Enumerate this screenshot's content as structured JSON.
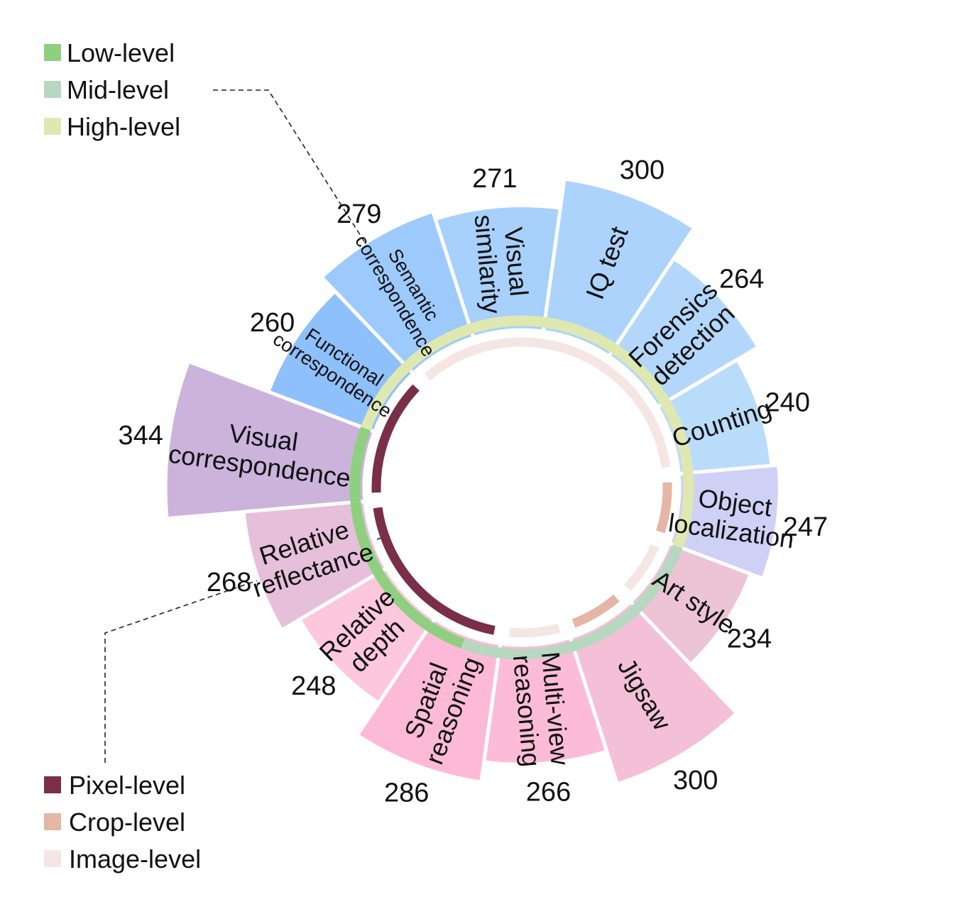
{
  "chart_data": {
    "type": "radial bar",
    "categories": [
      {
        "name": "Visual correspondence",
        "lines": [
          "Visual",
          "correspondence"
        ],
        "value": 344,
        "color": "#cbb3dc",
        "small": false
      },
      {
        "name": "Functional correspondence",
        "lines": [
          "Functional",
          "correspondence"
        ],
        "value": 260,
        "color": "#8ec0fb",
        "small": true
      },
      {
        "name": "Semantic correspondence",
        "lines": [
          "Semantic",
          "correspondence"
        ],
        "value": 279,
        "color": "#9ccafc",
        "small": true
      },
      {
        "name": "Visual similarity",
        "lines": [
          "Visual",
          "similarity"
        ],
        "value": 271,
        "color": "#a7d0fb",
        "small": false
      },
      {
        "name": "IQ test",
        "lines": [
          "IQ test"
        ],
        "value": 300,
        "color": "#acd3fb",
        "small": false
      },
      {
        "name": "Forensics detection",
        "lines": [
          "Forensics",
          "detection"
        ],
        "value": 264,
        "color": "#b3d7fb",
        "small": false
      },
      {
        "name": "Counting",
        "lines": [
          "Counting"
        ],
        "value": 240,
        "color": "#badcfb",
        "small": false
      },
      {
        "name": "Object localization",
        "lines": [
          "Object",
          "localization"
        ],
        "value": 247,
        "color": "#cfd0f6",
        "small": false
      },
      {
        "name": "Art style",
        "lines": [
          "Art style"
        ],
        "value": 234,
        "color": "#ecc4d6",
        "small": false
      },
      {
        "name": "Jigsaw",
        "lines": [
          "Jigsaw"
        ],
        "value": 300,
        "color": "#f3c0d7",
        "small": false
      },
      {
        "name": "Multi-view reasoning",
        "lines": [
          "Multi-view",
          "reasoning"
        ],
        "value": 266,
        "color": "#fcbcd7",
        "small": false
      },
      {
        "name": "Spatial reasoning",
        "lines": [
          "Spatial",
          "reasoning"
        ],
        "value": 286,
        "color": "#fcbad6",
        "small": false
      },
      {
        "name": "Relative depth",
        "lines": [
          "Relative",
          "depth"
        ],
        "value": 248,
        "color": "#fdc7dc",
        "small": false
      },
      {
        "name": "Relative reflectance",
        "lines": [
          "Relative",
          "reflectance"
        ],
        "value": 268,
        "color": "#e6bfdb",
        "small": false
      }
    ],
    "outer_ring": [
      {
        "level": "Low-level",
        "color": "#8fd080",
        "categories": [
          "Spatial reasoning",
          "Relative depth",
          "Relative reflectance",
          "Visual correspondence"
        ]
      },
      {
        "level": "Mid-level",
        "color": "#b7d7c0",
        "categories": [
          "Art style",
          "Jigsaw",
          "Multi-view reasoning",
          "Spatial reasoning"
        ]
      },
      {
        "level": "High-level",
        "color": "#dfe8b0",
        "categories": [
          "Functional correspondence",
          "Semantic correspondence",
          "Visual similarity",
          "IQ test",
          "Forensics detection",
          "Counting",
          "Object localization"
        ]
      }
    ],
    "inner_ring": [
      {
        "level": "Pixel-level",
        "color": "#7a2e47",
        "categories": [
          "Visual correspondence",
          "Relative reflectance",
          "Relative depth",
          "Spatial reasoning",
          "Functional correspondence"
        ]
      },
      {
        "level": "Crop-level",
        "color": "#e4b6a4",
        "categories": [
          "Object localization",
          "Jigsaw"
        ]
      },
      {
        "level": "Image-level",
        "color": "#f5e6e3",
        "categories": [
          "Semantic correspondence",
          "Visual similarity",
          "IQ test",
          "Forensics detection",
          "Counting",
          "Multi-view reasoning",
          "Art style"
        ]
      }
    ],
    "legends": {
      "top": [
        {
          "label": "Low-level",
          "color": "#8fd080"
        },
        {
          "label": "Mid-level",
          "color": "#b7d7c0"
        },
        {
          "label": "High-level",
          "color": "#dfe8b0"
        }
      ],
      "bottom": [
        {
          "label": "Pixel-level",
          "color": "#7a2e47"
        },
        {
          "label": "Crop-level",
          "color": "#e4b6a4"
        },
        {
          "label": "Image-level",
          "color": "#f5e6e3"
        }
      ]
    }
  }
}
